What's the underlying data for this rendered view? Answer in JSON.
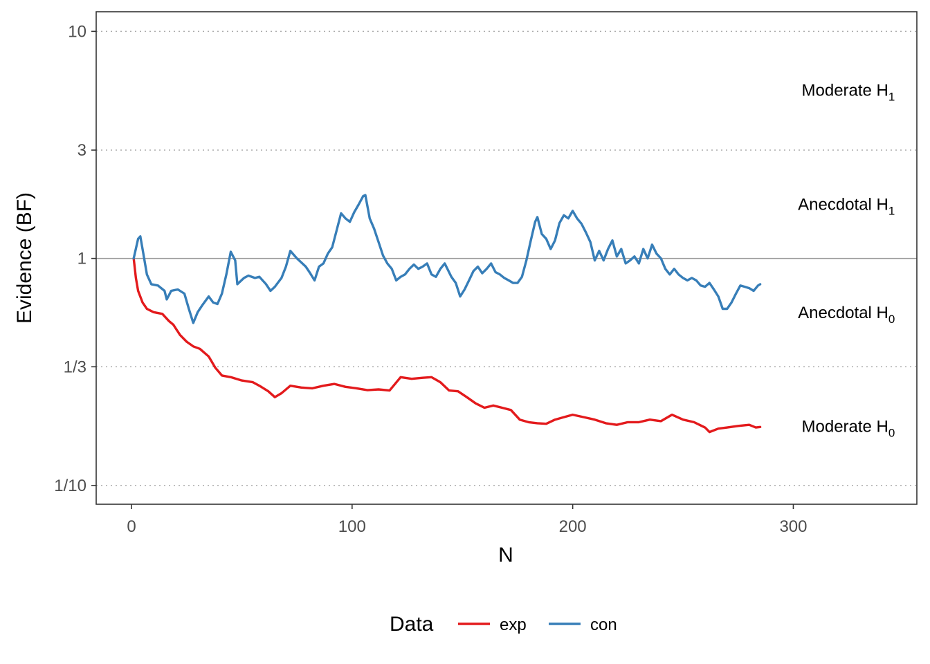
{
  "chart_data": {
    "type": "line",
    "xlabel": "N",
    "ylabel": "Evidence (BF)",
    "xlim": [
      -16,
      356
    ],
    "ylim": [
      0.0827,
      12.2
    ],
    "y_scale": "log",
    "x_ticks": [
      0,
      100,
      200,
      300
    ],
    "x_tick_labels": [
      "0",
      "100",
      "200",
      "300"
    ],
    "y_ticks": [
      0.1,
      0.3333,
      1,
      3,
      10
    ],
    "y_tick_labels": [
      "1/10",
      "1/3",
      "1",
      "3",
      "10"
    ],
    "reference_line": 1,
    "threshold_lines": [
      0.1,
      0.3333,
      3,
      10
    ],
    "grid": "horizontal dotted at thresholds",
    "annotations": [
      {
        "main": "Moderate H",
        "sub": "1",
        "x": 342,
        "y": 5.5
      },
      {
        "main": "Anecdotal H",
        "sub": "1",
        "x": 342,
        "y": 1.73
      },
      {
        "main": "Anecdotal H",
        "sub": "0",
        "x": 342,
        "y": 0.578
      },
      {
        "main": "Moderate H",
        "sub": "0",
        "x": 342,
        "y": 0.182
      }
    ],
    "legend": {
      "title": "Data",
      "position": "bottom"
    },
    "series": [
      {
        "name": "exp",
        "color": "#e31a1c",
        "points": [
          [
            1,
            1.0
          ],
          [
            2,
            0.82
          ],
          [
            3,
            0.72
          ],
          [
            5,
            0.64
          ],
          [
            7,
            0.6
          ],
          [
            10,
            0.58
          ],
          [
            14,
            0.57
          ],
          [
            17,
            0.53
          ],
          [
            19,
            0.51
          ],
          [
            22,
            0.46
          ],
          [
            25,
            0.43
          ],
          [
            28,
            0.41
          ],
          [
            31,
            0.4
          ],
          [
            35,
            0.37
          ],
          [
            38,
            0.33
          ],
          [
            41,
            0.305
          ],
          [
            45,
            0.3
          ],
          [
            50,
            0.29
          ],
          [
            55,
            0.285
          ],
          [
            58,
            0.275
          ],
          [
            62,
            0.26
          ],
          [
            65,
            0.245
          ],
          [
            68,
            0.255
          ],
          [
            72,
            0.275
          ],
          [
            77,
            0.27
          ],
          [
            82,
            0.268
          ],
          [
            87,
            0.275
          ],
          [
            92,
            0.28
          ],
          [
            97,
            0.272
          ],
          [
            102,
            0.268
          ],
          [
            107,
            0.263
          ],
          [
            112,
            0.265
          ],
          [
            117,
            0.262
          ],
          [
            122,
            0.3
          ],
          [
            127,
            0.295
          ],
          [
            132,
            0.298
          ],
          [
            136,
            0.3
          ],
          [
            140,
            0.285
          ],
          [
            144,
            0.262
          ],
          [
            148,
            0.26
          ],
          [
            152,
            0.245
          ],
          [
            156,
            0.23
          ],
          [
            160,
            0.22
          ],
          [
            164,
            0.225
          ],
          [
            168,
            0.22
          ],
          [
            172,
            0.215
          ],
          [
            176,
            0.195
          ],
          [
            180,
            0.19
          ],
          [
            184,
            0.188
          ],
          [
            188,
            0.187
          ],
          [
            192,
            0.195
          ],
          [
            196,
            0.2
          ],
          [
            200,
            0.205
          ],
          [
            205,
            0.2
          ],
          [
            210,
            0.195
          ],
          [
            215,
            0.188
          ],
          [
            220,
            0.185
          ],
          [
            225,
            0.19
          ],
          [
            230,
            0.19
          ],
          [
            235,
            0.195
          ],
          [
            240,
            0.192
          ],
          [
            245,
            0.205
          ],
          [
            250,
            0.195
          ],
          [
            255,
            0.19
          ],
          [
            260,
            0.18
          ],
          [
            262,
            0.172
          ],
          [
            266,
            0.178
          ],
          [
            270,
            0.18
          ],
          [
            275,
            0.183
          ],
          [
            280,
            0.185
          ],
          [
            283,
            0.18
          ],
          [
            285,
            0.181
          ]
        ]
      },
      {
        "name": "con",
        "color": "#377eb8",
        "points": [
          [
            1,
            1.0
          ],
          [
            3,
            1.22
          ],
          [
            4,
            1.25
          ],
          [
            5,
            1.1
          ],
          [
            7,
            0.85
          ],
          [
            9,
            0.77
          ],
          [
            12,
            0.76
          ],
          [
            15,
            0.72
          ],
          [
            16,
            0.66
          ],
          [
            18,
            0.72
          ],
          [
            21,
            0.73
          ],
          [
            24,
            0.7
          ],
          [
            26,
            0.6
          ],
          [
            28,
            0.52
          ],
          [
            30,
            0.58
          ],
          [
            32,
            0.62
          ],
          [
            35,
            0.68
          ],
          [
            37,
            0.64
          ],
          [
            39,
            0.63
          ],
          [
            41,
            0.7
          ],
          [
            43,
            0.85
          ],
          [
            45,
            1.07
          ],
          [
            47,
            0.98
          ],
          [
            48,
            0.77
          ],
          [
            51,
            0.82
          ],
          [
            53,
            0.84
          ],
          [
            56,
            0.82
          ],
          [
            58,
            0.83
          ],
          [
            61,
            0.77
          ],
          [
            63,
            0.72
          ],
          [
            65,
            0.75
          ],
          [
            68,
            0.82
          ],
          [
            70,
            0.92
          ],
          [
            72,
            1.08
          ],
          [
            75,
            1.0
          ],
          [
            77,
            0.96
          ],
          [
            79,
            0.92
          ],
          [
            81,
            0.86
          ],
          [
            83,
            0.8
          ],
          [
            85,
            0.92
          ],
          [
            87,
            0.95
          ],
          [
            89,
            1.05
          ],
          [
            91,
            1.12
          ],
          [
            93,
            1.33
          ],
          [
            95,
            1.58
          ],
          [
            97,
            1.5
          ],
          [
            99,
            1.45
          ],
          [
            101,
            1.6
          ],
          [
            103,
            1.73
          ],
          [
            105,
            1.88
          ],
          [
            106,
            1.9
          ],
          [
            108,
            1.5
          ],
          [
            110,
            1.35
          ],
          [
            112,
            1.18
          ],
          [
            114,
            1.03
          ],
          [
            116,
            0.95
          ],
          [
            118,
            0.9
          ],
          [
            120,
            0.8
          ],
          [
            122,
            0.83
          ],
          [
            124,
            0.85
          ],
          [
            126,
            0.9
          ],
          [
            128,
            0.94
          ],
          [
            130,
            0.9
          ],
          [
            132,
            0.92
          ],
          [
            134,
            0.95
          ],
          [
            136,
            0.85
          ],
          [
            138,
            0.83
          ],
          [
            140,
            0.9
          ],
          [
            142,
            0.95
          ],
          [
            145,
            0.83
          ],
          [
            147,
            0.78
          ],
          [
            149,
            0.68
          ],
          [
            151,
            0.73
          ],
          [
            153,
            0.8
          ],
          [
            155,
            0.88
          ],
          [
            157,
            0.92
          ],
          [
            159,
            0.86
          ],
          [
            161,
            0.9
          ],
          [
            163,
            0.95
          ],
          [
            165,
            0.87
          ],
          [
            167,
            0.85
          ],
          [
            169,
            0.82
          ],
          [
            171,
            0.8
          ],
          [
            173,
            0.78
          ],
          [
            175,
            0.78
          ],
          [
            177,
            0.83
          ],
          [
            179,
            0.98
          ],
          [
            181,
            1.2
          ],
          [
            183,
            1.45
          ],
          [
            184,
            1.52
          ],
          [
            186,
            1.28
          ],
          [
            188,
            1.22
          ],
          [
            190,
            1.1
          ],
          [
            192,
            1.2
          ],
          [
            194,
            1.43
          ],
          [
            196,
            1.55
          ],
          [
            198,
            1.5
          ],
          [
            200,
            1.62
          ],
          [
            202,
            1.5
          ],
          [
            204,
            1.42
          ],
          [
            206,
            1.3
          ],
          [
            208,
            1.18
          ],
          [
            210,
            0.98
          ],
          [
            212,
            1.08
          ],
          [
            214,
            0.98
          ],
          [
            216,
            1.1
          ],
          [
            218,
            1.2
          ],
          [
            220,
            1.02
          ],
          [
            222,
            1.1
          ],
          [
            224,
            0.95
          ],
          [
            226,
            0.98
          ],
          [
            228,
            1.02
          ],
          [
            230,
            0.95
          ],
          [
            232,
            1.1
          ],
          [
            234,
            1.0
          ],
          [
            236,
            1.15
          ],
          [
            238,
            1.05
          ],
          [
            240,
            1.0
          ],
          [
            242,
            0.9
          ],
          [
            244,
            0.85
          ],
          [
            246,
            0.9
          ],
          [
            248,
            0.85
          ],
          [
            250,
            0.82
          ],
          [
            252,
            0.8
          ],
          [
            254,
            0.82
          ],
          [
            256,
            0.8
          ],
          [
            258,
            0.76
          ],
          [
            260,
            0.75
          ],
          [
            262,
            0.78
          ],
          [
            264,
            0.73
          ],
          [
            266,
            0.68
          ],
          [
            268,
            0.6
          ],
          [
            270,
            0.6
          ],
          [
            272,
            0.64
          ],
          [
            274,
            0.7
          ],
          [
            276,
            0.76
          ],
          [
            278,
            0.75
          ],
          [
            280,
            0.74
          ],
          [
            282,
            0.72
          ],
          [
            284,
            0.76
          ],
          [
            285,
            0.77
          ]
        ]
      }
    ]
  }
}
